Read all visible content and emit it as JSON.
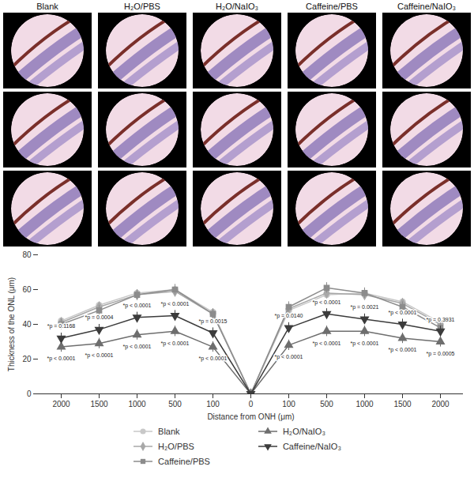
{
  "micrographs": {
    "columns": [
      "Blank",
      "H₂O/PBS",
      "H₂O/NaIO₃",
      "Caffeine/PBS",
      "Caffeine/NaIO₃"
    ],
    "rows": 3
  },
  "chart_data": {
    "type": "line",
    "x_label": "Distance from ONH (μm)",
    "y_label": "Thickness of the ONL (μm)",
    "categories": [
      "2000",
      "1500",
      "1000",
      "500",
      "100",
      "0",
      "100",
      "500",
      "1000",
      "1500",
      "2000"
    ],
    "ylim": [
      0,
      80
    ],
    "yticks": [
      0,
      20,
      40,
      60,
      80
    ],
    "legend": "bottom",
    "series": [
      {
        "name": "Blank",
        "color": "#c8c8c8",
        "marker": "circle",
        "line_style": "solid",
        "values": [
          42,
          51,
          58,
          60,
          47,
          0,
          48,
          57,
          58,
          53,
          41
        ],
        "errors": [
          2,
          2,
          2,
          2,
          2,
          0,
          2,
          2,
          2,
          2,
          2
        ]
      },
      {
        "name": "H₂O/PBS",
        "color": "#a8a8a8",
        "marker": "diamond",
        "line_style": "solid",
        "values": [
          41,
          50,
          57,
          59,
          46,
          0,
          49,
          58,
          57,
          52,
          40
        ],
        "errors": [
          2,
          2,
          2,
          2,
          2,
          0,
          2,
          2,
          2,
          2,
          2
        ]
      },
      {
        "name": "Caffeine/PBS",
        "color": "#8c8c8c",
        "marker": "square",
        "line_style": "solid",
        "values": [
          40,
          48,
          57,
          60,
          46,
          0,
          50,
          61,
          58,
          50,
          38
        ],
        "errors": [
          3,
          3,
          3,
          3,
          3,
          0,
          3,
          3,
          3,
          3,
          3
        ]
      },
      {
        "name": "H₂O/NaIO₃",
        "color": "#6e6e6e",
        "marker": "triangle",
        "line_style": "solid",
        "values": [
          27,
          29,
          34,
          36,
          27,
          0,
          28,
          36,
          36,
          32,
          30
        ],
        "errors": [
          3,
          3,
          3,
          3,
          3,
          0,
          3,
          3,
          3,
          3,
          3
        ],
        "p_labels": [
          "*p < 0.0001",
          "*p < 0.0001",
          "*p < 0.0001",
          "*p < 0.0001",
          "*p < 0.0001",
          null,
          "*p < 0.0001",
          "*p < 0.0001",
          "*p < 0.0001",
          "*p < 0.0001",
          "*p = 0.0005"
        ]
      },
      {
        "name": "Caffeine/NaIO₃",
        "color": "#3c3c3c",
        "marker": "triangle-down",
        "line_style": "solid",
        "values": [
          32,
          37,
          44,
          45,
          35,
          0,
          38,
          46,
          43,
          40,
          36
        ],
        "errors": [
          3,
          3,
          3,
          3,
          3,
          0,
          3,
          3,
          3,
          3,
          3
        ],
        "p_labels": [
          "*p = 0.1168",
          "*p = 0.0004",
          "*p < 0.0001",
          "*p < 0.0001",
          "*p = 0.0015",
          null,
          "*p = 0.0140",
          "*p < 0.0001",
          "*p = 0.0021",
          "*p < 0.0001",
          "*p = 0.3931"
        ]
      }
    ]
  }
}
